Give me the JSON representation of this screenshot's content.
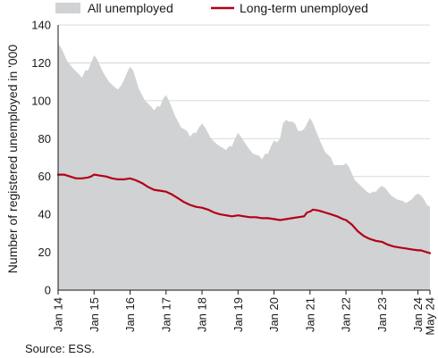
{
  "chart_data": {
    "type": "area",
    "ylabel": "Number of registered unemployed in '000",
    "ylim": [
      0,
      140
    ],
    "yticks": [
      0,
      20,
      40,
      60,
      80,
      100,
      120,
      140
    ],
    "xlim": [
      "2014-01",
      "2024-05"
    ],
    "xticks": [
      {
        "date": "2014-01",
        "label": "Jan 14"
      },
      {
        "date": "2015-01",
        "label": "Jan 15"
      },
      {
        "date": "2016-01",
        "label": "Jan 16"
      },
      {
        "date": "2017-01",
        "label": "Jan 17"
      },
      {
        "date": "2018-01",
        "label": "Jan 18"
      },
      {
        "date": "2019-01",
        "label": "Jan 19"
      },
      {
        "date": "2020-01",
        "label": "Jan 20"
      },
      {
        "date": "2021-01",
        "label": "Jan 21"
      },
      {
        "date": "2022-01",
        "label": "Jan 22"
      },
      {
        "date": "2023-01",
        "label": "Jan 23"
      },
      {
        "date": "2024-01",
        "label": "Jan 24"
      },
      {
        "date": "2024-05",
        "label": "May 24"
      }
    ],
    "grid": "horizontal",
    "legend": "top",
    "source": "Source: ESS.",
    "series": [
      {
        "name": "All unemployed",
        "style": "area",
        "color": "#d0d2d4",
        "points": [
          [
            "2014-01",
            130
          ],
          [
            "2014-02",
            128
          ],
          [
            "2014-04",
            121
          ],
          [
            "2014-06",
            117
          ],
          [
            "2014-08",
            114
          ],
          [
            "2014-09",
            112
          ],
          [
            "2014-10",
            116
          ],
          [
            "2014-11",
            116
          ],
          [
            "2014-12",
            120
          ],
          [
            "2015-01",
            124
          ],
          [
            "2015-02",
            122
          ],
          [
            "2015-04",
            115
          ],
          [
            "2015-06",
            110
          ],
          [
            "2015-08",
            107
          ],
          [
            "2015-09",
            106
          ],
          [
            "2015-10",
            108
          ],
          [
            "2015-11",
            111
          ],
          [
            "2015-12",
            115
          ],
          [
            "2016-01",
            118
          ],
          [
            "2016-02",
            116
          ],
          [
            "2016-04",
            106
          ],
          [
            "2016-06",
            100
          ],
          [
            "2016-08",
            97
          ],
          [
            "2016-09",
            95
          ],
          [
            "2016-10",
            97
          ],
          [
            "2016-11",
            97
          ],
          [
            "2016-12",
            101
          ],
          [
            "2017-01",
            103
          ],
          [
            "2017-02",
            100
          ],
          [
            "2017-04",
            92
          ],
          [
            "2017-06",
            86
          ],
          [
            "2017-08",
            84
          ],
          [
            "2017-09",
            81
          ],
          [
            "2017-10",
            83
          ],
          [
            "2017-11",
            83
          ],
          [
            "2017-12",
            86
          ],
          [
            "2018-01",
            88
          ],
          [
            "2018-02",
            86
          ],
          [
            "2018-04",
            80
          ],
          [
            "2018-06",
            77
          ],
          [
            "2018-08",
            75
          ],
          [
            "2018-09",
            74
          ],
          [
            "2018-10",
            76
          ],
          [
            "2018-11",
            76
          ],
          [
            "2018-12",
            80
          ],
          [
            "2019-01",
            83
          ],
          [
            "2019-02",
            81
          ],
          [
            "2019-04",
            76
          ],
          [
            "2019-06",
            72
          ],
          [
            "2019-08",
            71
          ],
          [
            "2019-09",
            69
          ],
          [
            "2019-10",
            72
          ],
          [
            "2019-11",
            72
          ],
          [
            "2019-12",
            76
          ],
          [
            "2020-01",
            79
          ],
          [
            "2020-02",
            78
          ],
          [
            "2020-03",
            80
          ],
          [
            "2020-04",
            88
          ],
          [
            "2020-05",
            90
          ],
          [
            "2020-06",
            89
          ],
          [
            "2020-07",
            89
          ],
          [
            "2020-08",
            88
          ],
          [
            "2020-09",
            84
          ],
          [
            "2020-10",
            84
          ],
          [
            "2020-11",
            85
          ],
          [
            "2020-12",
            88
          ],
          [
            "2021-01",
            91
          ],
          [
            "2021-02",
            88
          ],
          [
            "2021-04",
            80
          ],
          [
            "2021-06",
            73
          ],
          [
            "2021-08",
            70
          ],
          [
            "2021-09",
            66
          ],
          [
            "2021-10",
            66
          ],
          [
            "2021-11",
            66
          ],
          [
            "2021-12",
            66
          ],
          [
            "2022-01",
            67
          ],
          [
            "2022-02",
            65
          ],
          [
            "2022-04",
            58
          ],
          [
            "2022-06",
            55
          ],
          [
            "2022-08",
            52
          ],
          [
            "2022-09",
            51
          ],
          [
            "2022-10",
            52
          ],
          [
            "2022-11",
            52
          ],
          [
            "2022-12",
            54
          ],
          [
            "2023-01",
            55
          ],
          [
            "2023-02",
            54
          ],
          [
            "2023-04",
            50
          ],
          [
            "2023-06",
            48
          ],
          [
            "2023-08",
            47
          ],
          [
            "2023-09",
            46
          ],
          [
            "2023-10",
            47
          ],
          [
            "2023-11",
            48
          ],
          [
            "2023-12",
            50
          ],
          [
            "2024-01",
            51
          ],
          [
            "2024-02",
            50
          ],
          [
            "2024-03",
            48
          ],
          [
            "2024-04",
            45
          ],
          [
            "2024-05",
            44
          ]
        ]
      },
      {
        "name": "Long-term unemployed",
        "style": "line",
        "color": "#b30018",
        "points": [
          [
            "2014-01",
            61
          ],
          [
            "2014-03",
            61
          ],
          [
            "2014-05",
            60
          ],
          [
            "2014-07",
            59
          ],
          [
            "2014-09",
            59
          ],
          [
            "2014-11",
            59.5
          ],
          [
            "2014-12",
            60
          ],
          [
            "2015-01",
            61
          ],
          [
            "2015-03",
            60.5
          ],
          [
            "2015-05",
            60
          ],
          [
            "2015-07",
            59
          ],
          [
            "2015-09",
            58.5
          ],
          [
            "2015-11",
            58.5
          ],
          [
            "2016-01",
            59
          ],
          [
            "2016-03",
            58
          ],
          [
            "2016-05",
            56.5
          ],
          [
            "2016-07",
            54.5
          ],
          [
            "2016-09",
            53
          ],
          [
            "2016-11",
            52.5
          ],
          [
            "2017-01",
            52
          ],
          [
            "2017-03",
            50.5
          ],
          [
            "2017-05",
            48.5
          ],
          [
            "2017-07",
            46.5
          ],
          [
            "2017-09",
            45
          ],
          [
            "2017-11",
            44
          ],
          [
            "2018-01",
            43.5
          ],
          [
            "2018-03",
            42.5
          ],
          [
            "2018-05",
            41
          ],
          [
            "2018-07",
            40
          ],
          [
            "2018-09",
            39.5
          ],
          [
            "2018-11",
            39
          ],
          [
            "2019-01",
            39.5
          ],
          [
            "2019-03",
            39
          ],
          [
            "2019-05",
            38.5
          ],
          [
            "2019-07",
            38.5
          ],
          [
            "2019-09",
            38
          ],
          [
            "2019-11",
            38
          ],
          [
            "2020-01",
            37.5
          ],
          [
            "2020-03",
            37
          ],
          [
            "2020-05",
            37.5
          ],
          [
            "2020-07",
            38
          ],
          [
            "2020-09",
            38.5
          ],
          [
            "2020-11",
            39
          ],
          [
            "2020-12",
            41
          ],
          [
            "2021-01",
            41.5
          ],
          [
            "2021-02",
            42.5
          ],
          [
            "2021-04",
            42
          ],
          [
            "2021-06",
            41
          ],
          [
            "2021-08",
            40
          ],
          [
            "2021-10",
            39
          ],
          [
            "2021-12",
            37.5
          ],
          [
            "2022-01",
            37
          ],
          [
            "2022-03",
            34.5
          ],
          [
            "2022-05",
            31
          ],
          [
            "2022-07",
            28.5
          ],
          [
            "2022-09",
            27
          ],
          [
            "2022-11",
            26
          ],
          [
            "2023-01",
            25.5
          ],
          [
            "2023-03",
            24
          ],
          [
            "2023-05",
            23
          ],
          [
            "2023-07",
            22.5
          ],
          [
            "2023-09",
            22
          ],
          [
            "2023-11",
            21.5
          ],
          [
            "2024-01",
            21
          ],
          [
            "2024-02",
            21
          ],
          [
            "2024-03",
            20.5
          ],
          [
            "2024-04",
            20
          ],
          [
            "2024-05",
            19.5
          ]
        ]
      }
    ]
  }
}
